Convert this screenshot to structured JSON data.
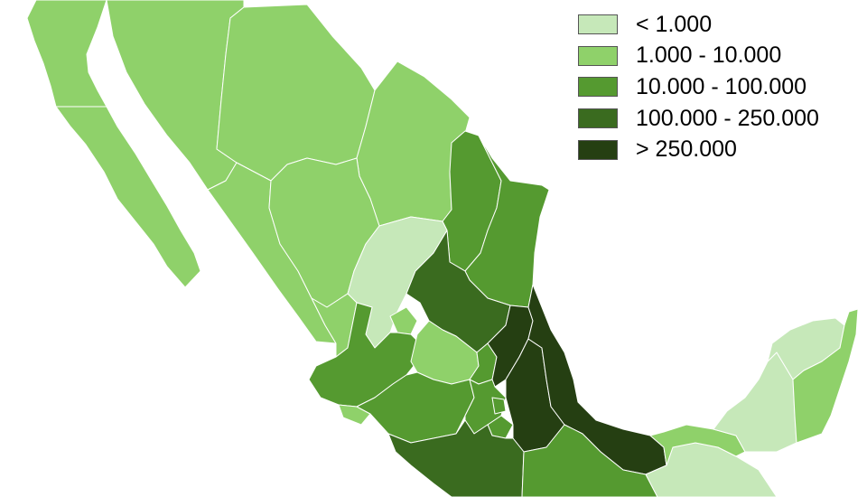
{
  "classes": [
    {
      "key": "c1",
      "label": "< 1.000",
      "color": "#c6e8b9"
    },
    {
      "key": "c2",
      "label": "1.000 - 10.000",
      "color": "#8fd16a"
    },
    {
      "key": "c3",
      "label": "10.000 - 100.000",
      "color": "#559a30"
    },
    {
      "key": "c4",
      "label": "100.000 - 250.000",
      "color": "#3a6b1f"
    },
    {
      "key": "c5",
      "label": "> 250.000",
      "color": "#253f12"
    }
  ],
  "regions": [
    {
      "name": "baja-california",
      "class": "c2"
    },
    {
      "name": "baja-california-sur",
      "class": "c2"
    },
    {
      "name": "sonora",
      "class": "c2"
    },
    {
      "name": "chihuahua",
      "class": "c2"
    },
    {
      "name": "coahuila",
      "class": "c2"
    },
    {
      "name": "nuevo-leon",
      "class": "c3"
    },
    {
      "name": "tamaulipas",
      "class": "c3"
    },
    {
      "name": "sinaloa",
      "class": "c2"
    },
    {
      "name": "durango",
      "class": "c2"
    },
    {
      "name": "zacatecas",
      "class": "c1"
    },
    {
      "name": "nayarit",
      "class": "c2"
    },
    {
      "name": "aguascalientes",
      "class": "c2"
    },
    {
      "name": "san-luis-potosi",
      "class": "c4"
    },
    {
      "name": "jalisco",
      "class": "c3"
    },
    {
      "name": "colima",
      "class": "c2"
    },
    {
      "name": "guanajuato",
      "class": "c2"
    },
    {
      "name": "queretaro",
      "class": "c3"
    },
    {
      "name": "michoacan",
      "class": "c3"
    },
    {
      "name": "hidalgo",
      "class": "c5"
    },
    {
      "name": "mexico-state",
      "class": "c3"
    },
    {
      "name": "mexico-city",
      "class": "c3"
    },
    {
      "name": "morelos",
      "class": "c3"
    },
    {
      "name": "tlaxcala",
      "class": "c5"
    },
    {
      "name": "puebla",
      "class": "c5"
    },
    {
      "name": "veracruz",
      "class": "c5"
    },
    {
      "name": "guerrero",
      "class": "c4"
    },
    {
      "name": "oaxaca",
      "class": "c3"
    },
    {
      "name": "chiapas",
      "class": "c1"
    },
    {
      "name": "tabasco",
      "class": "c2"
    },
    {
      "name": "campeche",
      "class": "c1"
    },
    {
      "name": "yucatan",
      "class": "c1"
    },
    {
      "name": "quintana-roo",
      "class": "c2"
    }
  ]
}
